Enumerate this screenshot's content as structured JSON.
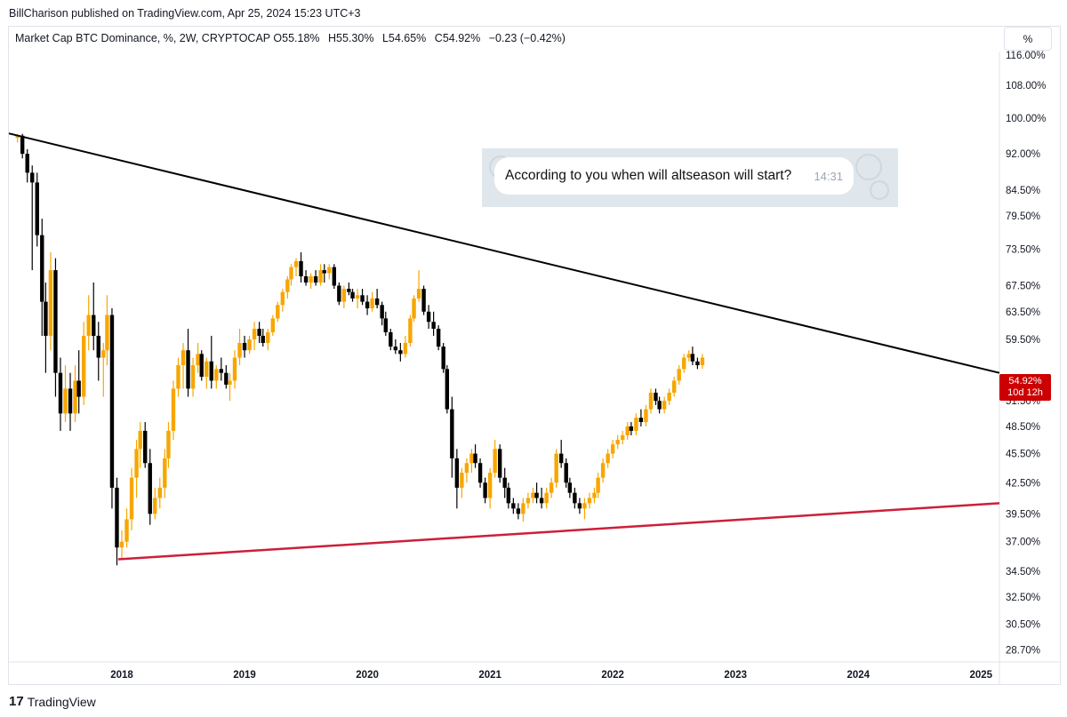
{
  "publisher": "BillCharison published on TradingView.com, Apr 25, 2024 15:23 UTC+3",
  "legend": {
    "symbol": "Market Cap BTC Dominance, %, 2W, CRYPTOCAP",
    "open_label": "O",
    "open": "55.18%",
    "high_label": "H",
    "high": "55.30%",
    "low_label": "L",
    "low": "54.65%",
    "close_label": "C",
    "close": "54.92%",
    "change": "−0.23 (−0.42%)"
  },
  "scale_button": "%",
  "price_badge": {
    "value": "54.92%",
    "countdown": "10d 12h"
  },
  "message": {
    "text": "According to you when will altseason will start?",
    "time": "14:31"
  },
  "footer": {
    "brand": "TradingView",
    "logo": "17"
  },
  "colors": {
    "up": "#f7a600",
    "down": "#000000",
    "projection": "#f5c880",
    "resistance": "#000000",
    "support": "#cc1f3a",
    "badge": "#cc0000"
  },
  "chart_data": {
    "type": "candlestick",
    "scale": "log",
    "interval": "2W",
    "y_tick_labels": [
      "116.00%",
      "108.00%",
      "100.00%",
      "92.00%",
      "84.50%",
      "79.50%",
      "73.50%",
      "67.50%",
      "63.50%",
      "59.50%",
      "51.50%",
      "48.50%",
      "45.50%",
      "42.50%",
      "39.50%",
      "37.00%",
      "34.50%",
      "32.50%",
      "30.50%",
      "28.70%"
    ],
    "x_tick_labels": [
      "2018",
      "2019",
      "2020",
      "2021",
      "2022",
      "2023",
      "2024",
      "2025"
    ],
    "x_ticks": [
      2018,
      2019,
      2020,
      2021,
      2022,
      2023,
      2024,
      2025
    ],
    "x_range": [
      2017.08,
      2025.15
    ],
    "y_range": [
      27.9,
      124
    ],
    "last_close": 54.92,
    "series": [
      {
        "type": "ohlc",
        "points": [
          [
            2017.15,
            95.5,
            96.3,
            94.5,
            96.0
          ],
          [
            2017.19,
            96.0,
            96.4,
            91.0,
            92.0
          ],
          [
            2017.23,
            92.0,
            93.0,
            86.0,
            88.0
          ],
          [
            2017.27,
            88.0,
            89.5,
            70.0,
            86.0
          ],
          [
            2017.31,
            86.0,
            88.0,
            74.0,
            76.0
          ],
          [
            2017.35,
            76.0,
            79.0,
            60.0,
            65.0
          ],
          [
            2017.38,
            65.0,
            68.0,
            55.0,
            60.0
          ],
          [
            2017.42,
            60.0,
            73.0,
            58.0,
            70.0
          ],
          [
            2017.46,
            70.0,
            72.0,
            52.0,
            55.0
          ],
          [
            2017.5,
            55.0,
            57.0,
            48.0,
            50.0
          ],
          [
            2017.54,
            50.0,
            56.0,
            49.0,
            53.0
          ],
          [
            2017.58,
            53.0,
            55.0,
            48.0,
            50.0
          ],
          [
            2017.62,
            50.0,
            56.0,
            49.0,
            54.0
          ],
          [
            2017.65,
            54.0,
            58.0,
            50.0,
            52.0
          ],
          [
            2017.69,
            52.0,
            62.0,
            51.0,
            60.0
          ],
          [
            2017.73,
            60.0,
            66.0,
            58.0,
            63.0
          ],
          [
            2017.77,
            63.0,
            68.0,
            58.0,
            60.0
          ],
          [
            2017.81,
            60.0,
            62.0,
            54.0,
            57.0
          ],
          [
            2017.85,
            57.0,
            59.0,
            52.0,
            58.0
          ],
          [
            2017.88,
            58.0,
            66.0,
            56.0,
            63.0
          ],
          [
            2017.92,
            63.0,
            64.0,
            40.0,
            42.0
          ],
          [
            2017.96,
            42.0,
            43.0,
            35.0,
            36.5
          ],
          [
            2018.0,
            36.5,
            38.0,
            35.5,
            37.0
          ],
          [
            2018.04,
            37.0,
            40.0,
            36.5,
            39.0
          ],
          [
            2018.08,
            39.0,
            44.0,
            38.0,
            43.0
          ],
          [
            2018.12,
            43.0,
            47.0,
            41.0,
            46.0
          ],
          [
            2018.15,
            46.0,
            49.0,
            44.0,
            48.0
          ],
          [
            2018.19,
            48.0,
            49.0,
            44.0,
            44.5
          ],
          [
            2018.23,
            44.5,
            46.0,
            38.5,
            39.5
          ],
          [
            2018.27,
            39.5,
            42.0,
            39.0,
            41.0
          ],
          [
            2018.31,
            41.0,
            43.0,
            40.0,
            42.0
          ],
          [
            2018.35,
            42.0,
            46.0,
            41.0,
            45.0
          ],
          [
            2018.38,
            45.0,
            49.0,
            44.0,
            48.0
          ],
          [
            2018.42,
            48.0,
            54.0,
            47.0,
            53.0
          ],
          [
            2018.46,
            53.0,
            57.0,
            52.0,
            56.0
          ],
          [
            2018.5,
            56.0,
            59.0,
            53.0,
            58.0
          ],
          [
            2018.54,
            58.0,
            61.0,
            52.0,
            53.0
          ],
          [
            2018.58,
            53.0,
            57.0,
            52.0,
            56.0
          ],
          [
            2018.62,
            56.0,
            59.0,
            55.0,
            57.5
          ],
          [
            2018.65,
            57.5,
            58.0,
            54.0,
            54.5
          ],
          [
            2018.69,
            54.5,
            57.0,
            53.0,
            56.5
          ],
          [
            2018.73,
            56.5,
            60.0,
            53.0,
            54.0
          ],
          [
            2018.77,
            54.0,
            56.0,
            53.0,
            55.5
          ],
          [
            2018.81,
            55.5,
            57.0,
            54.0,
            55.0
          ],
          [
            2018.85,
            55.0,
            56.0,
            53.0,
            53.5
          ],
          [
            2018.88,
            53.5,
            55.0,
            51.5,
            54.0
          ],
          [
            2018.92,
            54.0,
            58.0,
            53.0,
            57.0
          ],
          [
            2018.96,
            57.0,
            61.0,
            56.0,
            59.0
          ],
          [
            2019.0,
            59.0,
            60.0,
            57.0,
            58.0
          ],
          [
            2019.04,
            58.0,
            60.0,
            57.5,
            59.5
          ],
          [
            2019.08,
            59.5,
            62.0,
            58.0,
            61.0
          ],
          [
            2019.12,
            61.0,
            62.0,
            59.0,
            60.0
          ],
          [
            2019.15,
            60.0,
            61.0,
            58.5,
            59.0
          ],
          [
            2019.19,
            59.0,
            61.0,
            58.0,
            60.5
          ],
          [
            2019.23,
            60.5,
            63.0,
            60.0,
            62.5
          ],
          [
            2019.27,
            62.5,
            65.0,
            62.0,
            64.5
          ],
          [
            2019.31,
            64.5,
            67.0,
            63.5,
            66.5
          ],
          [
            2019.35,
            66.5,
            69.0,
            65.5,
            68.5
          ],
          [
            2019.38,
            68.5,
            71.0,
            67.5,
            70.5
          ],
          [
            2019.42,
            70.5,
            72.0,
            69.0,
            71.5
          ],
          [
            2019.46,
            71.5,
            73.0,
            68.0,
            69.0
          ],
          [
            2019.5,
            69.0,
            70.0,
            67.5,
            68.0
          ],
          [
            2019.54,
            68.0,
            69.5,
            67.0,
            69.0
          ],
          [
            2019.58,
            69.0,
            70.0,
            67.5,
            68.0
          ],
          [
            2019.62,
            68.0,
            71.0,
            67.5,
            70.0
          ],
          [
            2019.65,
            70.0,
            71.0,
            68.0,
            69.5
          ],
          [
            2019.69,
            69.5,
            71.0,
            68.5,
            70.5
          ],
          [
            2019.73,
            70.5,
            71.0,
            67.0,
            67.5
          ],
          [
            2019.77,
            67.5,
            68.0,
            64.5,
            65.0
          ],
          [
            2019.81,
            65.0,
            67.5,
            64.0,
            67.0
          ],
          [
            2019.85,
            67.0,
            68.0,
            66.0,
            66.5
          ],
          [
            2019.88,
            66.5,
            67.0,
            65.0,
            65.5
          ],
          [
            2019.92,
            65.5,
            67.0,
            64.0,
            66.0
          ],
          [
            2019.96,
            66.0,
            67.0,
            64.5,
            65.0
          ],
          [
            2020.0,
            65.0,
            66.0,
            63.0,
            64.0
          ],
          [
            2020.04,
            64.0,
            66.5,
            63.5,
            65.5
          ],
          [
            2020.08,
            65.5,
            67.0,
            64.0,
            64.5
          ],
          [
            2020.12,
            64.5,
            65.0,
            61.5,
            62.5
          ],
          [
            2020.15,
            62.5,
            63.5,
            60.0,
            60.5
          ],
          [
            2020.19,
            60.5,
            61.0,
            58.0,
            58.5
          ],
          [
            2020.23,
            58.5,
            59.5,
            57.5,
            58.0
          ],
          [
            2020.27,
            58.0,
            59.0,
            56.5,
            57.5
          ],
          [
            2020.31,
            57.5,
            60.0,
            57.0,
            59.0
          ],
          [
            2020.35,
            59.0,
            63.0,
            58.5,
            62.5
          ],
          [
            2020.38,
            62.5,
            66.0,
            62.0,
            65.5
          ],
          [
            2020.42,
            65.5,
            70.0,
            65.0,
            67.0
          ],
          [
            2020.46,
            67.0,
            67.5,
            63.0,
            63.5
          ],
          [
            2020.5,
            63.5,
            64.5,
            61.0,
            62.0
          ],
          [
            2020.54,
            62.0,
            63.5,
            60.0,
            61.0
          ],
          [
            2020.58,
            61.0,
            61.5,
            58.0,
            58.5
          ],
          [
            2020.62,
            58.5,
            59.0,
            55.0,
            55.5
          ],
          [
            2020.65,
            55.5,
            56.0,
            50.0,
            50.5
          ],
          [
            2020.69,
            50.5,
            52.0,
            43.0,
            45.0
          ],
          [
            2020.73,
            45.0,
            46.0,
            40.0,
            42.0
          ],
          [
            2020.77,
            42.0,
            44.0,
            41.0,
            43.5
          ],
          [
            2020.81,
            43.5,
            45.0,
            42.5,
            44.5
          ],
          [
            2020.85,
            44.5,
            46.0,
            43.5,
            45.5
          ],
          [
            2020.88,
            45.5,
            46.5,
            44.0,
            44.5
          ],
          [
            2020.92,
            44.5,
            45.0,
            42.0,
            42.5
          ],
          [
            2020.96,
            42.5,
            43.0,
            40.5,
            41.0
          ],
          [
            2021.0,
            41.0,
            44.0,
            40.0,
            43.5
          ],
          [
            2021.04,
            43.5,
            47.0,
            43.0,
            46.0
          ],
          [
            2021.08,
            46.0,
            46.5,
            42.5,
            43.0
          ],
          [
            2021.12,
            43.0,
            44.0,
            41.0,
            42.0
          ],
          [
            2021.15,
            42.0,
            42.5,
            40.0,
            40.5
          ],
          [
            2021.19,
            40.5,
            41.0,
            39.5,
            40.0
          ],
          [
            2021.23,
            40.0,
            40.5,
            39.0,
            39.5
          ],
          [
            2021.27,
            39.5,
            41.0,
            38.8,
            40.5
          ],
          [
            2021.31,
            40.5,
            41.5,
            40.0,
            41.0
          ],
          [
            2021.35,
            41.0,
            42.0,
            40.5,
            41.5
          ],
          [
            2021.38,
            41.5,
            42.5,
            40.5,
            41.0
          ],
          [
            2021.42,
            41.0,
            42.0,
            40.0,
            40.5
          ],
          [
            2021.46,
            40.5,
            42.0,
            40.0,
            41.5
          ],
          [
            2021.5,
            41.5,
            43.0,
            41.0,
            42.5
          ],
          [
            2021.54,
            42.5,
            46.0,
            42.0,
            45.5
          ],
          [
            2021.58,
            45.5,
            47.0,
            44.0,
            44.5
          ],
          [
            2021.62,
            44.5,
            45.0,
            42.0,
            42.5
          ],
          [
            2021.65,
            42.5,
            43.0,
            41.0,
            41.5
          ],
          [
            2021.69,
            41.5,
            42.0,
            40.0,
            40.5
          ],
          [
            2021.73,
            40.5,
            41.0,
            39.5,
            40.0
          ],
          [
            2021.77,
            40.0,
            41.0,
            39.0,
            40.5
          ],
          [
            2021.81,
            40.5,
            41.5,
            40.0,
            41.0
          ],
          [
            2021.85,
            41.0,
            42.0,
            40.5,
            41.5
          ],
          [
            2021.88,
            41.5,
            43.5,
            41.0,
            43.0
          ],
          [
            2021.92,
            43.0,
            45.0,
            42.5,
            44.5
          ],
          [
            2021.96,
            44.5,
            46.0,
            44.0,
            45.5
          ],
          [
            2022.0,
            45.5,
            47.0,
            45.0,
            46.5
          ],
          [
            2022.04,
            46.5,
            47.5,
            46.0,
            47.0
          ],
          [
            2022.08,
            47.0,
            48.0,
            46.5,
            47.5
          ],
          [
            2022.12,
            47.5,
            49.0,
            47.0,
            48.5
          ],
          [
            2022.15,
            48.5,
            49.0,
            47.5,
            48.0
          ],
          [
            2022.19,
            48.0,
            50.0,
            47.5,
            49.5
          ],
          [
            2022.23,
            49.5,
            50.5,
            48.5,
            49.0
          ],
          [
            2022.27,
            49.0,
            51.0,
            48.5,
            50.5
          ],
          [
            2022.31,
            50.5,
            53.0,
            50.0,
            52.5
          ],
          [
            2022.35,
            52.5,
            53.0,
            51.0,
            51.5
          ],
          [
            2022.38,
            51.5,
            52.0,
            50.0,
            50.5
          ],
          [
            2022.42,
            50.5,
            52.0,
            50.0,
            51.5
          ],
          [
            2022.46,
            51.5,
            53.0,
            51.0,
            52.5
          ],
          [
            2022.5,
            52.5,
            54.5,
            52.0,
            54.0
          ],
          [
            2022.54,
            54.0,
            56.0,
            53.5,
            55.5
          ],
          [
            2022.58,
            55.5,
            57.5,
            55.0,
            57.0
          ],
          [
            2022.62,
            57.0,
            58.0,
            56.5,
            57.5
          ],
          [
            2022.65,
            57.5,
            58.5,
            56.0,
            56.5
          ],
          [
            2022.69,
            56.5,
            57.0,
            55.5,
            56.0
          ],
          [
            2022.73,
            56.0,
            57.5,
            55.5,
            57.0
          ]
        ]
      }
    ],
    "candles_note": "",
    "trendlines": [
      {
        "name": "",
        "from": [
          2017.08,
          96.5
        ],
        "to": [
          2025.15,
          55.0
        ]
      },
      {
        "name": "",
        "from": [
          2017.97,
          35.5
        ],
        "to": [
          2025.15,
          40.5
        ]
      }
    ]
  }
}
